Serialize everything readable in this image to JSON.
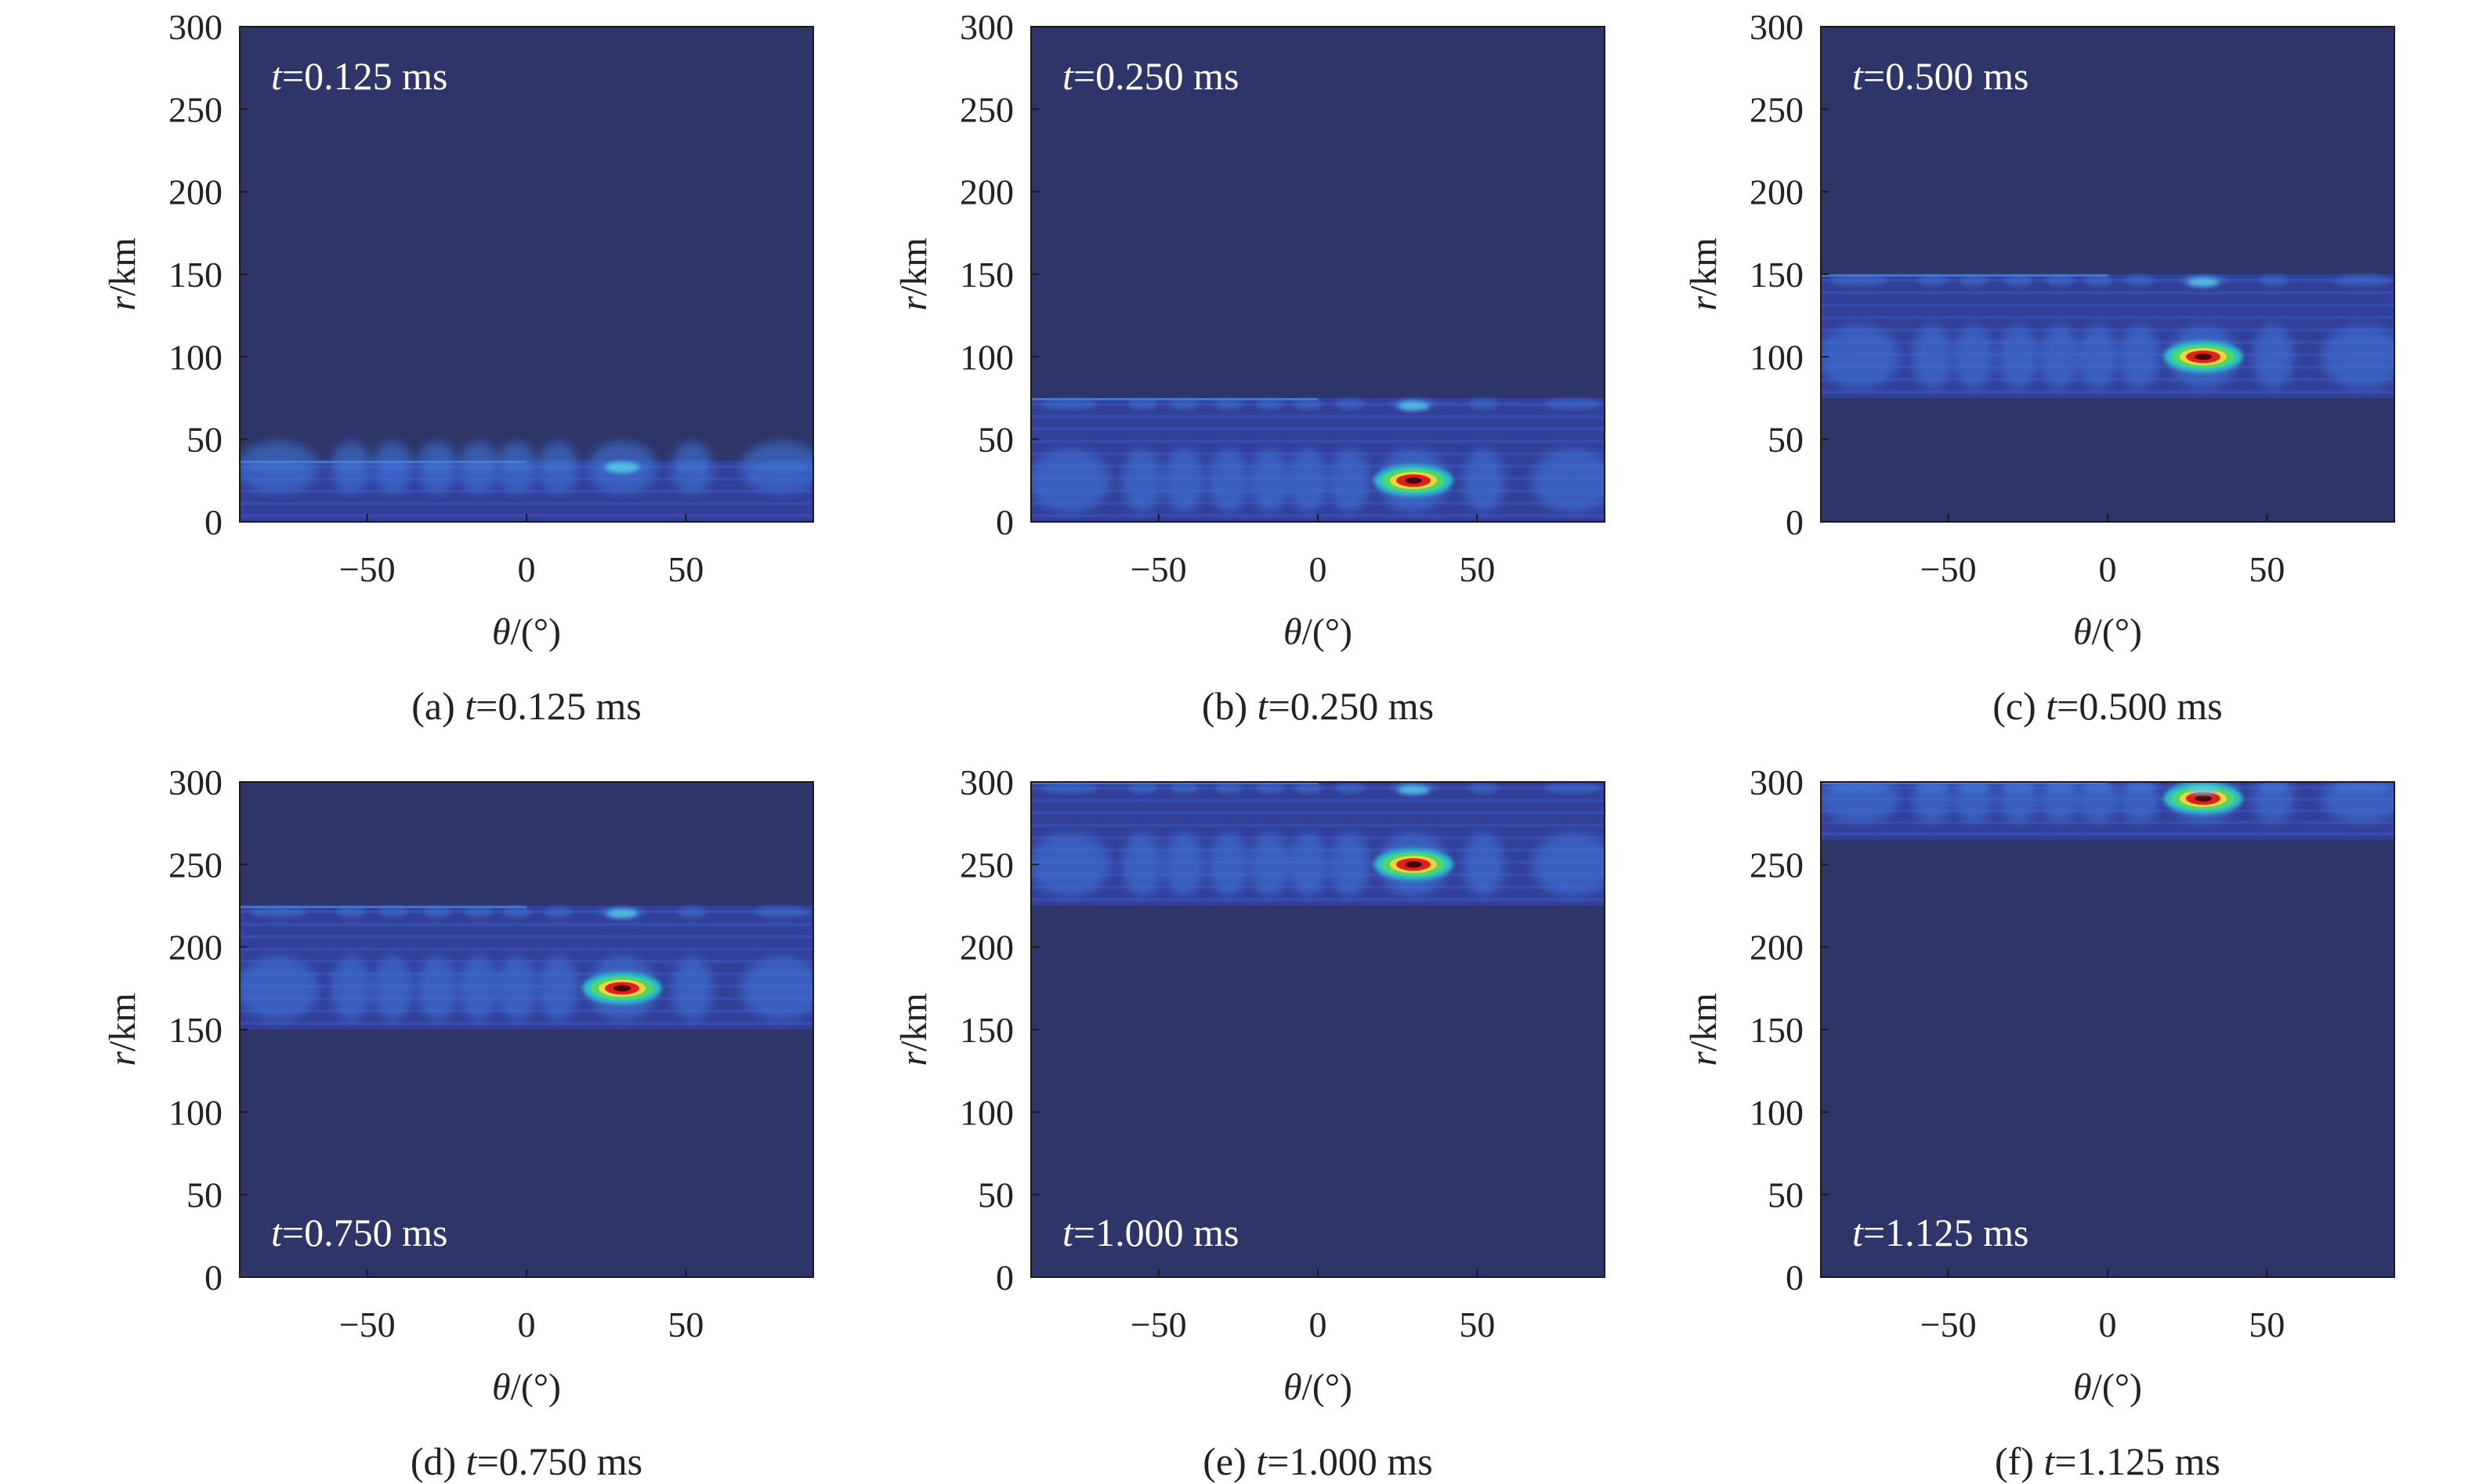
{
  "chart_data": [
    {
      "type": "heatmap",
      "panel": "(a)",
      "caption_prefix": "(a) ",
      "caption_var": "t",
      "caption_value": "=0.125 ms",
      "annotation_var": "t",
      "annotation_value": "=0.125 ms",
      "annotation_position": "top-left",
      "xlabel_var": "θ",
      "xlabel_unit": "/(°)",
      "ylabel_var": "r",
      "ylabel_unit": "/km",
      "xlim": [
        -90,
        90
      ],
      "ylim": [
        0,
        300
      ],
      "x_ticks": [
        "−50",
        "0",
        "50"
      ],
      "x_tick_values": [
        -50,
        0,
        50
      ],
      "y_ticks": [
        "0",
        "50",
        "100",
        "150",
        "200",
        "250",
        "300"
      ],
      "y_tick_values": [
        0,
        50,
        100,
        150,
        200,
        250,
        300
      ],
      "band_r_range": [
        0,
        37
      ],
      "peak": {
        "theta": 30,
        "r": 33,
        "level": "weak"
      }
    },
    {
      "type": "heatmap",
      "panel": "(b)",
      "caption_prefix": "(b) ",
      "caption_var": "t",
      "caption_value": "=0.250 ms",
      "annotation_var": "t",
      "annotation_value": "=0.250 ms",
      "annotation_position": "top-left",
      "xlabel_var": "θ",
      "xlabel_unit": "/(°)",
      "ylabel_var": "r",
      "ylabel_unit": "/km",
      "xlim": [
        -90,
        90
      ],
      "ylim": [
        0,
        300
      ],
      "x_ticks": [
        "−50",
        "0",
        "50"
      ],
      "x_tick_values": [
        -50,
        0,
        50
      ],
      "y_ticks": [
        "0",
        "50",
        "100",
        "150",
        "200",
        "250",
        "300"
      ],
      "y_tick_values": [
        0,
        50,
        100,
        150,
        200,
        250,
        300
      ],
      "band_r_range": [
        0,
        75
      ],
      "peak": {
        "theta": 30,
        "r": 25,
        "level": "strong"
      }
    },
    {
      "type": "heatmap",
      "panel": "(c)",
      "caption_prefix": "(c) ",
      "caption_var": "t",
      "caption_value": "=0.500 ms",
      "annotation_var": "t",
      "annotation_value": "=0.500 ms",
      "annotation_position": "top-left",
      "xlabel_var": "θ",
      "xlabel_unit": "/(°)",
      "ylabel_var": "r",
      "ylabel_unit": "/km",
      "xlim": [
        -90,
        90
      ],
      "ylim": [
        0,
        300
      ],
      "x_ticks": [
        "−50",
        "0",
        "50"
      ],
      "x_tick_values": [
        -50,
        0,
        50
      ],
      "y_ticks": [
        "0",
        "50",
        "100",
        "150",
        "200",
        "250",
        "300"
      ],
      "y_tick_values": [
        0,
        50,
        100,
        150,
        200,
        250,
        300
      ],
      "band_r_range": [
        75,
        150
      ],
      "peak": {
        "theta": 30,
        "r": 100,
        "level": "strong"
      }
    },
    {
      "type": "heatmap",
      "panel": "(d)",
      "caption_prefix": "(d) ",
      "caption_var": "t",
      "caption_value": "=0.750 ms",
      "annotation_var": "t",
      "annotation_value": "=0.750 ms",
      "annotation_position": "bottom-left",
      "xlabel_var": "θ",
      "xlabel_unit": "/(°)",
      "ylabel_var": "r",
      "ylabel_unit": "/km",
      "xlim": [
        -90,
        90
      ],
      "ylim": [
        0,
        300
      ],
      "x_ticks": [
        "−50",
        "0",
        "50"
      ],
      "x_tick_values": [
        -50,
        0,
        50
      ],
      "y_ticks": [
        "0",
        "50",
        "100",
        "150",
        "200",
        "250",
        "300"
      ],
      "y_tick_values": [
        0,
        50,
        100,
        150,
        200,
        250,
        300
      ],
      "band_r_range": [
        150,
        225
      ],
      "peak": {
        "theta": 30,
        "r": 175,
        "level": "strong"
      }
    },
    {
      "type": "heatmap",
      "panel": "(e)",
      "caption_prefix": "(e) ",
      "caption_var": "t",
      "caption_value": "=1.000 ms",
      "annotation_var": "t",
      "annotation_value": "=1.000 ms",
      "annotation_position": "bottom-left",
      "xlabel_var": "θ",
      "xlabel_unit": "/(°)",
      "ylabel_var": "r",
      "ylabel_unit": "/km",
      "xlim": [
        -90,
        90
      ],
      "ylim": [
        0,
        300
      ],
      "x_ticks": [
        "−50",
        "0",
        "50"
      ],
      "x_tick_values": [
        -50,
        0,
        50
      ],
      "y_ticks": [
        "0",
        "50",
        "100",
        "150",
        "200",
        "250",
        "300"
      ],
      "y_tick_values": [
        0,
        50,
        100,
        150,
        200,
        250,
        300
      ],
      "band_r_range": [
        225,
        300
      ],
      "peak": {
        "theta": 30,
        "r": 250,
        "level": "strong"
      }
    },
    {
      "type": "heatmap",
      "panel": "(f)",
      "caption_prefix": "(f) ",
      "caption_var": "t",
      "caption_value": "=1.125 ms",
      "annotation_var": "t",
      "annotation_value": "=1.125 ms",
      "annotation_position": "bottom-left",
      "xlabel_var": "θ",
      "xlabel_unit": "/(°)",
      "ylabel_var": "r",
      "ylabel_unit": "/km",
      "xlim": [
        -90,
        90
      ],
      "ylim": [
        0,
        300
      ],
      "x_ticks": [
        "−50",
        "0",
        "50"
      ],
      "x_tick_values": [
        -50,
        0,
        50
      ],
      "y_ticks": [
        "0",
        "50",
        "100",
        "150",
        "200",
        "250",
        "300"
      ],
      "y_tick_values": [
        0,
        50,
        100,
        150,
        200,
        250,
        300
      ],
      "band_r_range": [
        265,
        300
      ],
      "peak": {
        "theta": 30,
        "r": 290,
        "level": "strong"
      }
    }
  ],
  "colors": {
    "background": "#2e3568",
    "band_base": "#33409a",
    "band_stripe": "#3a55c0",
    "blob": "#3f74d8",
    "peak_outer": "#2fc3c8",
    "peak_mid": "#4fd66a",
    "peak_inner": "#f1d43a",
    "peak_core": "#e02020",
    "peak_center": "#4a0000",
    "weak_peak": "#55c7e8"
  }
}
